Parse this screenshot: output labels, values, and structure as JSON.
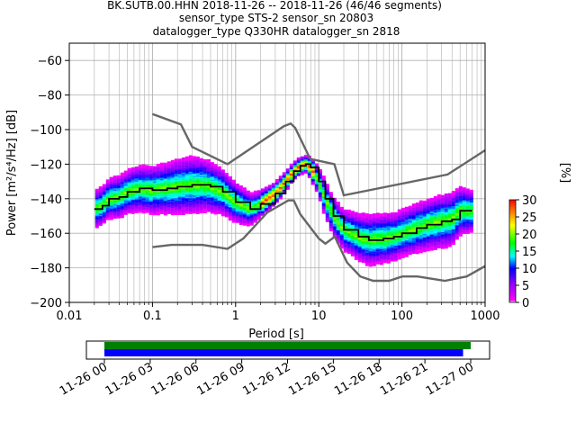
{
  "chart_data": {
    "type": "heatmap",
    "title_lines": [
      "BK.SUTB.00.HHN   2018-11-26 -- 2018-11-26  (46/46 segments)",
      "sensor_type STS-2 sensor_sn 20803",
      "datalogger_type Q330HR datalogger_sn 2818"
    ],
    "xlabel": "Period [s]",
    "ylabel": "Power [m²/s⁴/Hz] [dB]",
    "xscale": "log",
    "xlim": [
      0.01,
      1000
    ],
    "ylim": [
      -200,
      -50
    ],
    "x_ticks": [
      0.01,
      0.1,
      1,
      10,
      100,
      1000
    ],
    "x_tick_labels": [
      "0.01",
      "0.1",
      "1",
      "10",
      "100",
      "1000"
    ],
    "y_ticks": [
      -200,
      -180,
      -160,
      -140,
      -120,
      -100,
      -80,
      -60
    ],
    "grid": true,
    "noise_models": {
      "high": [
        [
          0.1,
          -91
        ],
        [
          0.22,
          -97
        ],
        [
          0.3,
          -110
        ],
        [
          0.8,
          -120
        ],
        [
          3.8,
          -98
        ],
        [
          4.6,
          -96.5
        ],
        [
          5.2,
          -99
        ],
        [
          7.9,
          -117
        ],
        [
          15.4,
          -120
        ],
        [
          20,
          -138
        ],
        [
          354,
          -126
        ],
        [
          1000,
          -112
        ]
      ],
      "low": [
        [
          0.1,
          -168
        ],
        [
          0.17,
          -166.7
        ],
        [
          0.4,
          -166.7
        ],
        [
          0.8,
          -169
        ],
        [
          1.24,
          -163
        ],
        [
          2.4,
          -148
        ],
        [
          4.3,
          -141
        ],
        [
          5,
          -141
        ],
        [
          6,
          -149
        ],
        [
          10,
          -163
        ],
        [
          12,
          -166
        ],
        [
          15.6,
          -162
        ],
        [
          21.9,
          -177
        ],
        [
          31.6,
          -185
        ],
        [
          45,
          -187.5
        ],
        [
          70,
          -187.5
        ],
        [
          101,
          -185
        ],
        [
          154,
          -185
        ],
        [
          328,
          -187.5
        ],
        [
          600,
          -185
        ],
        [
          1000,
          -179
        ]
      ]
    },
    "mode_curve": [
      [
        0.02,
        -146
      ],
      [
        0.025,
        -144
      ],
      [
        0.03,
        -140
      ],
      [
        0.04,
        -139
      ],
      [
        0.05,
        -136
      ],
      [
        0.07,
        -134
      ],
      [
        0.1,
        -135
      ],
      [
        0.15,
        -134
      ],
      [
        0.2,
        -133
      ],
      [
        0.3,
        -132
      ],
      [
        0.4,
        -132
      ],
      [
        0.5,
        -133
      ],
      [
        0.7,
        -136
      ],
      [
        1,
        -142
      ],
      [
        1.5,
        -146
      ],
      [
        2,
        -143
      ],
      [
        3,
        -137
      ],
      [
        4,
        -130
      ],
      [
        5,
        -124
      ],
      [
        6,
        -121
      ],
      [
        7,
        -120
      ],
      [
        8,
        -122
      ],
      [
        10,
        -130
      ],
      [
        12,
        -140
      ],
      [
        15,
        -150
      ],
      [
        20,
        -158
      ],
      [
        30,
        -162
      ],
      [
        40,
        -164
      ],
      [
        60,
        -163
      ],
      [
        80,
        -162
      ],
      [
        100,
        -160
      ],
      [
        150,
        -157
      ],
      [
        200,
        -155
      ],
      [
        300,
        -153
      ],
      [
        400,
        -152
      ],
      [
        500,
        -147
      ],
      [
        700,
        -147
      ]
    ],
    "psd_spread": [
      [
        0.02,
        11
      ],
      [
        0.05,
        13
      ],
      [
        0.1,
        14
      ],
      [
        0.3,
        17
      ],
      [
        1,
        12
      ],
      [
        2,
        8
      ],
      [
        4,
        6
      ],
      [
        7,
        5
      ],
      [
        12,
        11
      ],
      [
        20,
        12
      ],
      [
        40,
        15
      ],
      [
        100,
        14
      ],
      [
        400,
        16
      ],
      [
        700,
        12
      ]
    ],
    "colorbar": {
      "label": "[%]",
      "min": 0,
      "max": 30,
      "ticks": [
        0,
        5,
        10,
        15,
        20,
        25,
        30
      ]
    },
    "timeline": {
      "x_tick_labels": [
        "11-26 00",
        "11-26 03",
        "11-26 06",
        "11-26 09",
        "11-26 12",
        "11-26 15",
        "11-26 18",
        "11-26 21",
        "11-27 00"
      ],
      "bars": [
        {
          "color": "#008000",
          "start_hour": 0,
          "end_hour": 24
        },
        {
          "color": "#0000ff",
          "start_hour": 0,
          "end_hour": 23.5
        }
      ]
    }
  }
}
